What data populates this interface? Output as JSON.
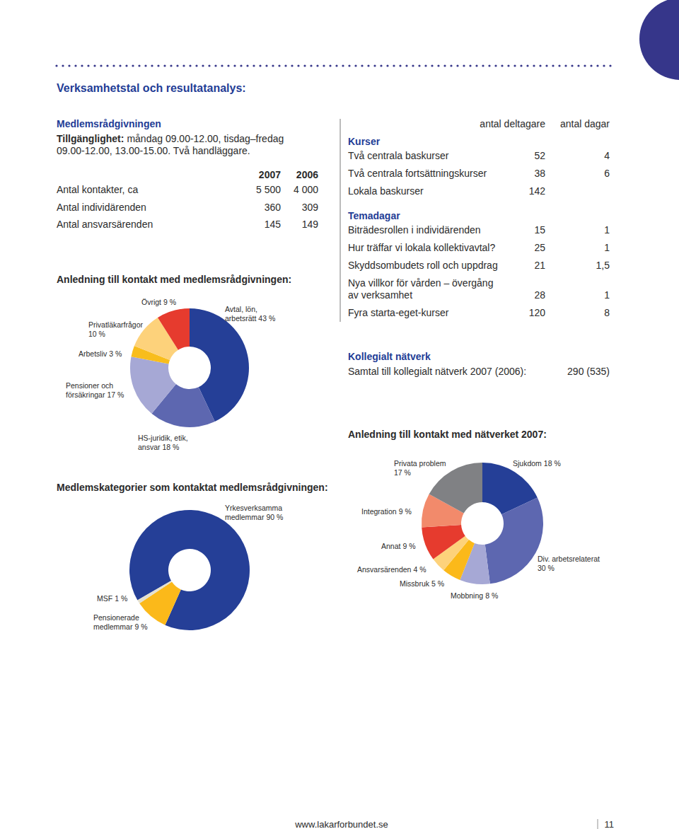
{
  "header": {
    "title": "Verksamhetstal och resultatanalys:"
  },
  "medlemsradgivningen": {
    "heading": "Medlemsrådgivningen",
    "availability_label": "Tillgänglighet:",
    "availability_lines": [
      "måndag 09.00-12.00, tisdag–fredag",
      "09.00-12.00, 13.00-15.00. Två handläggare."
    ],
    "table": {
      "columns": [
        "2007",
        "2006"
      ],
      "rows": [
        {
          "label": "Antal kontakter, ca",
          "values": [
            "5 500",
            "4 000"
          ]
        },
        {
          "label": "Antal individärenden",
          "values": [
            "360",
            "309"
          ]
        },
        {
          "label": "Antal ansvarsärenden",
          "values": [
            "145",
            "149"
          ]
        }
      ]
    }
  },
  "courses": {
    "columns": [
      "antal deltagare",
      "antal dagar"
    ],
    "sections": [
      {
        "heading": "Kurser",
        "rows": [
          {
            "label": [
              "Två centrala baskurser"
            ],
            "values": [
              "52",
              "4"
            ]
          },
          {
            "label": [
              "Två centrala fortsättningskurser"
            ],
            "values": [
              "38",
              "6"
            ]
          },
          {
            "label": [
              "Lokala baskurser"
            ],
            "values": [
              "142"
            ]
          }
        ]
      },
      {
        "heading": "Temadagar",
        "rows": [
          {
            "label": [
              "Biträdesrollen i individärenden"
            ],
            "values": [
              "15",
              "1"
            ]
          },
          {
            "label": [
              "Hur träffar vi lokala kollektivavtal?"
            ],
            "values": [
              "25",
              "1"
            ]
          },
          {
            "label": [
              "Skyddsombudets roll och uppdrag"
            ],
            "values": [
              "21",
              "1,5"
            ]
          },
          {
            "label": [
              "Nya villkor för vården – övergång",
              "av verksamhet"
            ],
            "values": [
              "28",
              "1"
            ]
          },
          {
            "label": [
              "Fyra starta-eget-kurser"
            ],
            "values": [
              "120",
              "8"
            ]
          }
        ]
      }
    ]
  },
  "network": {
    "heading": "Kollegialt nätverk",
    "text": "Samtal till kollegialt nätverk 2007 (2006):",
    "value": "290 (535)"
  },
  "footer": {
    "url": "www.lakarforbundet.se",
    "page": "11"
  },
  "chart_data": [
    {
      "type": "donut",
      "title": "Anledning till kontakt med medlemsrådgivningen:",
      "categories": [
        "Avtal, lön, arbetsrätt",
        "HS-juridik, etik, ansvar",
        "Pensioner och försäkringar",
        "Arbetsliv",
        "Privatläkarfrågor",
        "Övrigt"
      ],
      "values": [
        43,
        18,
        17,
        3,
        10,
        9
      ],
      "value_labels": [
        "43 %",
        "18 %",
        "17 %",
        "3 %",
        "10 %",
        "9 %"
      ],
      "colors": [
        "#253f97",
        "#5d67b0",
        "#a6a8d5",
        "#f8bd1c",
        "#fdd27b",
        "#e63b2e"
      ],
      "data_labels": true
    },
    {
      "type": "donut",
      "title": "Medlemskategorier som kontaktat medlemsrådgivningen:",
      "categories": [
        "Yrkesverksamma medlemmar",
        "Pensionerade medlemmar",
        "MSF"
      ],
      "values": [
        90,
        9,
        1
      ],
      "value_labels": [
        "90 %",
        "9 %",
        "1 %"
      ],
      "colors": [
        "#253f97",
        "#fbb91a",
        "#e4e0cf"
      ],
      "data_labels": true
    },
    {
      "type": "donut",
      "title": "Anledning till kontakt med nätverket 2007:",
      "categories": [
        "Sjukdom",
        "Div. arbetsrelaterat",
        "Mobbning",
        "Missbruk",
        "Ansvarsärenden",
        "Annat",
        "Integration",
        "Privata problem"
      ],
      "values": [
        18,
        30,
        8,
        5,
        4,
        9,
        9,
        17
      ],
      "value_labels": [
        "18 %",
        "30 %",
        "8 %",
        "5 %",
        "4 %",
        "9 %",
        "9 %",
        "17 %"
      ],
      "colors": [
        "#253f97",
        "#5d67b0",
        "#a6a8d5",
        "#fbb91a",
        "#fdd27b",
        "#e63b2e",
        "#f28a6b",
        "#808184"
      ],
      "data_labels": true
    }
  ]
}
